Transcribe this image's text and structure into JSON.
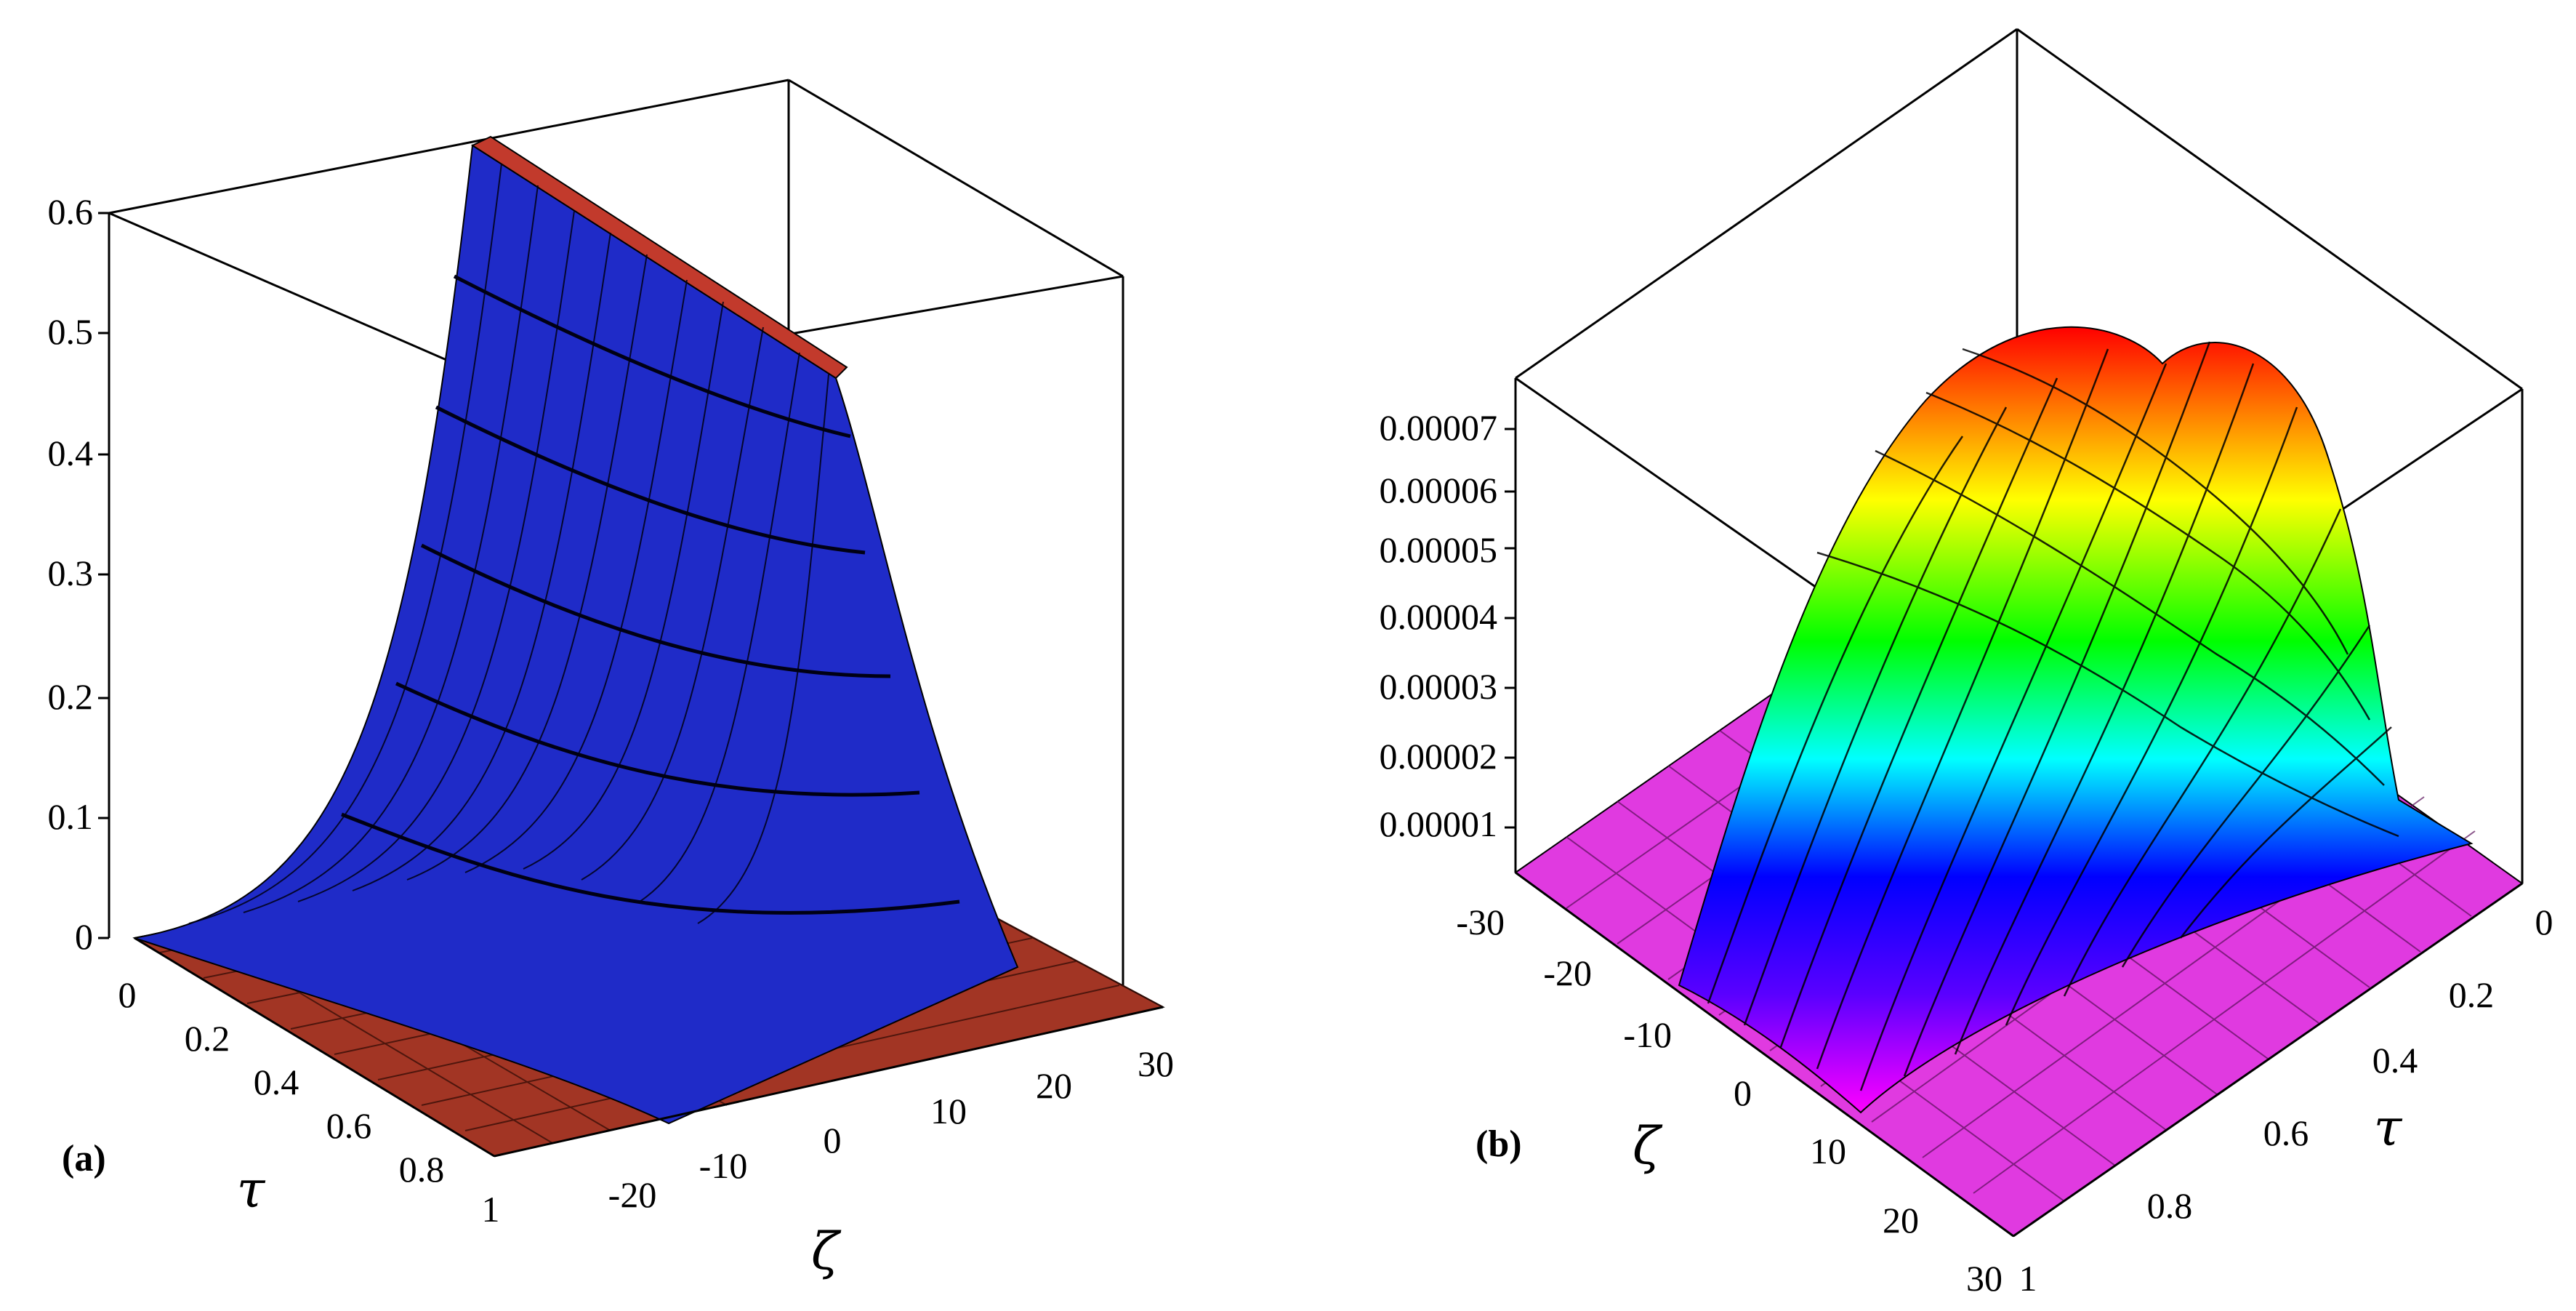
{
  "panels": [
    {
      "id": "a",
      "label": "(a)",
      "x_axis_label": "τ",
      "y_axis_label": "ζ",
      "x_ticks": [
        "0",
        "0.2",
        "0.4",
        "0.6",
        "0.8",
        "1"
      ],
      "y_ticks": [
        "-20",
        "-10",
        "0",
        "10",
        "20",
        "30"
      ],
      "z_ticks": [
        "0",
        "0.1",
        "0.2",
        "0.3",
        "0.4",
        "0.5",
        "0.6"
      ],
      "surface_color": "#1f2bc8",
      "mesh_color": "#000000",
      "base_color": "#a03020"
    },
    {
      "id": "b",
      "label": "(b)",
      "x_axis_label": "τ",
      "y_axis_label": "ζ",
      "x_ticks": [
        "0",
        "0.2",
        "0.4",
        "0.6",
        "0.8",
        "1"
      ],
      "y_ticks": [
        "-30",
        "-20",
        "-10",
        "0",
        "10",
        "20",
        "30"
      ],
      "z_ticks": [
        "0.00001",
        "0.00002",
        "0.00003",
        "0.00004",
        "0.00005",
        "0.00006",
        "0.00007"
      ],
      "colormap": [
        "#ff00ff",
        "#5a00ff",
        "#0000ff",
        "#00ffff",
        "#00ff00",
        "#ffff00",
        "#ff0000"
      ],
      "mesh_color": "#000000"
    }
  ],
  "chart_data": [
    {
      "type": "surface",
      "panel": "(a)",
      "xlabel": "τ",
      "ylabel": "ζ",
      "x_range": [
        0,
        1
      ],
      "y_range": [
        -30,
        30
      ],
      "z_range": [
        0,
        0.6
      ],
      "description": "ridge along τ centered near ζ=0, peak height 0.6",
      "peak_z": 0.6
    },
    {
      "type": "surface",
      "panel": "(b)",
      "xlabel": "τ",
      "ylabel": "ζ",
      "x_range": [
        0,
        1
      ],
      "y_range": [
        -30,
        30
      ],
      "z_range": [
        0,
        7e-05
      ],
      "description": "double-humped surface with peak near ζ≈-5 and ζ≈5, around τ≈0.3",
      "peak_z": 7e-05
    }
  ]
}
